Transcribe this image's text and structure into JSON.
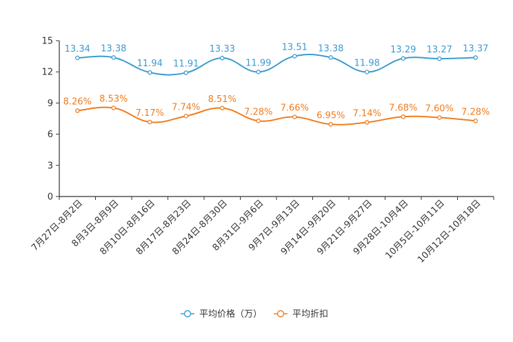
{
  "chart_data": {
    "type": "line",
    "categories": [
      "7月27日-8月2日",
      "8月3日-8月9日",
      "8月10日-8月16日",
      "8月17日-8月23日",
      "8月24日-8月30日",
      "8月31日-9月6日",
      "9月7日-9月13日",
      "9月14日-9月20日",
      "9月21日-9月27日",
      "9月28日-10月4日",
      "10月5日-10月11日",
      "10月12日-10月18日"
    ],
    "yticks": [
      "0",
      "3",
      "6",
      "9",
      "12",
      "15"
    ],
    "ylim": [
      0,
      15
    ],
    "series": [
      {
        "name": "平均价格（万）",
        "color": "#3a9bd0",
        "values": [
          13.34,
          13.38,
          11.94,
          11.91,
          13.33,
          11.99,
          13.51,
          13.38,
          11.98,
          13.29,
          13.27,
          13.37
        ],
        "labels": [
          "13.34",
          "13.38",
          "11.94",
          "11.91",
          "13.33",
          "11.99",
          "13.51",
          "13.38",
          "11.98",
          "13.29",
          "13.27",
          "13.37"
        ]
      },
      {
        "name": "平均折扣",
        "color": "#f07c1e",
        "values": [
          8.26,
          8.53,
          7.17,
          7.74,
          8.51,
          7.28,
          7.66,
          6.95,
          7.14,
          7.68,
          7.6,
          7.28
        ],
        "labels": [
          "8.26%",
          "8.53%",
          "7.17%",
          "7.74%",
          "8.51%",
          "7.28%",
          "7.66%",
          "6.95%",
          "7.14%",
          "7.68%",
          "7.60%",
          "7.28%"
        ]
      }
    ],
    "grid": false,
    "legend": "bottom-center"
  }
}
